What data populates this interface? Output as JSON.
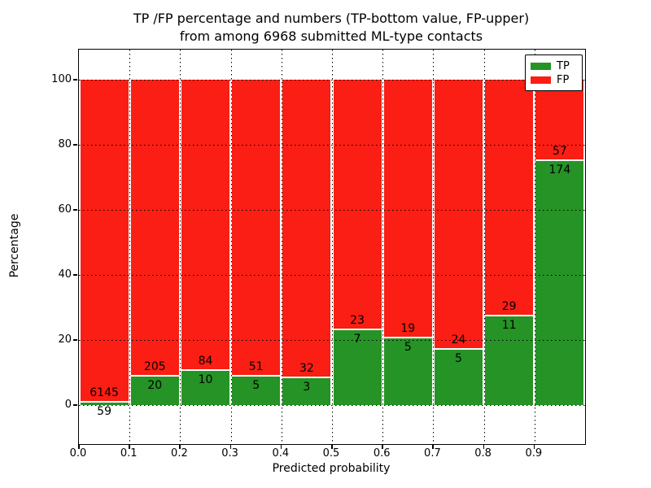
{
  "title": {
    "line1": "TP /FP percentage and numbers (TP-bottom value, FP-upper)",
    "line2": "from among 6968 submitted ML-type contacts"
  },
  "axes": {
    "xlabel": "Predicted probability",
    "ylabel": "Percentage",
    "xtick_labels": [
      "0.0",
      "0.1",
      "0.2",
      "0.3",
      "0.4",
      "0.5",
      "0.6",
      "0.7",
      "0.8",
      "0.9"
    ],
    "ytick_labels": [
      "0",
      "20",
      "40",
      "60",
      "80",
      "100"
    ],
    "ytick_values": [
      0,
      20,
      40,
      60,
      80,
      100
    ]
  },
  "legend": {
    "items": [
      {
        "label": "TP",
        "color": "#259325"
      },
      {
        "label": "FP",
        "color": "#fa1e14"
      }
    ]
  },
  "colors": {
    "tp_green": "#259325",
    "fp_red": "#fa1e14",
    "grid": "#000000",
    "background": "#ffffff"
  },
  "chart_data": {
    "type": "bar",
    "stacked": true,
    "title": "TP /FP percentage and numbers (TP-bottom value, FP-upper) from among 6968 submitted ML-type contacts",
    "xlabel": "Predicted probability",
    "ylabel": "Percentage",
    "total_contacts": 6968,
    "bin_width": 0.1,
    "bin_starts": [
      0.0,
      0.1,
      0.2,
      0.3,
      0.4,
      0.5,
      0.6,
      0.7,
      0.8,
      0.9
    ],
    "categories": [
      "0.0-0.1",
      "0.1-0.2",
      "0.2-0.3",
      "0.3-0.4",
      "0.4-0.5",
      "0.5-0.6",
      "0.6-0.7",
      "0.7-0.8",
      "0.8-0.9",
      "0.9-1.0"
    ],
    "series": [
      {
        "name": "TP",
        "color": "#259325",
        "counts": [
          59,
          20,
          10,
          5,
          3,
          7,
          5,
          5,
          11,
          174
        ],
        "pct": [
          0.95,
          8.89,
          10.64,
          8.93,
          8.57,
          23.33,
          20.83,
          17.24,
          27.5,
          75.32
        ]
      },
      {
        "name": "FP",
        "color": "#fa1e14",
        "counts": [
          6145,
          205,
          84,
          51,
          32,
          23,
          19,
          24,
          29,
          57
        ],
        "pct": [
          99.05,
          91.11,
          89.36,
          91.07,
          91.43,
          76.67,
          79.17,
          82.76,
          72.5,
          24.68
        ]
      }
    ],
    "xlim": [
      0.0,
      1.0
    ],
    "ylim": [
      -12,
      109.25
    ],
    "grid": "dotted black, vertical at each 0.1, horizontal at each 20",
    "legend_position": "upper right"
  }
}
